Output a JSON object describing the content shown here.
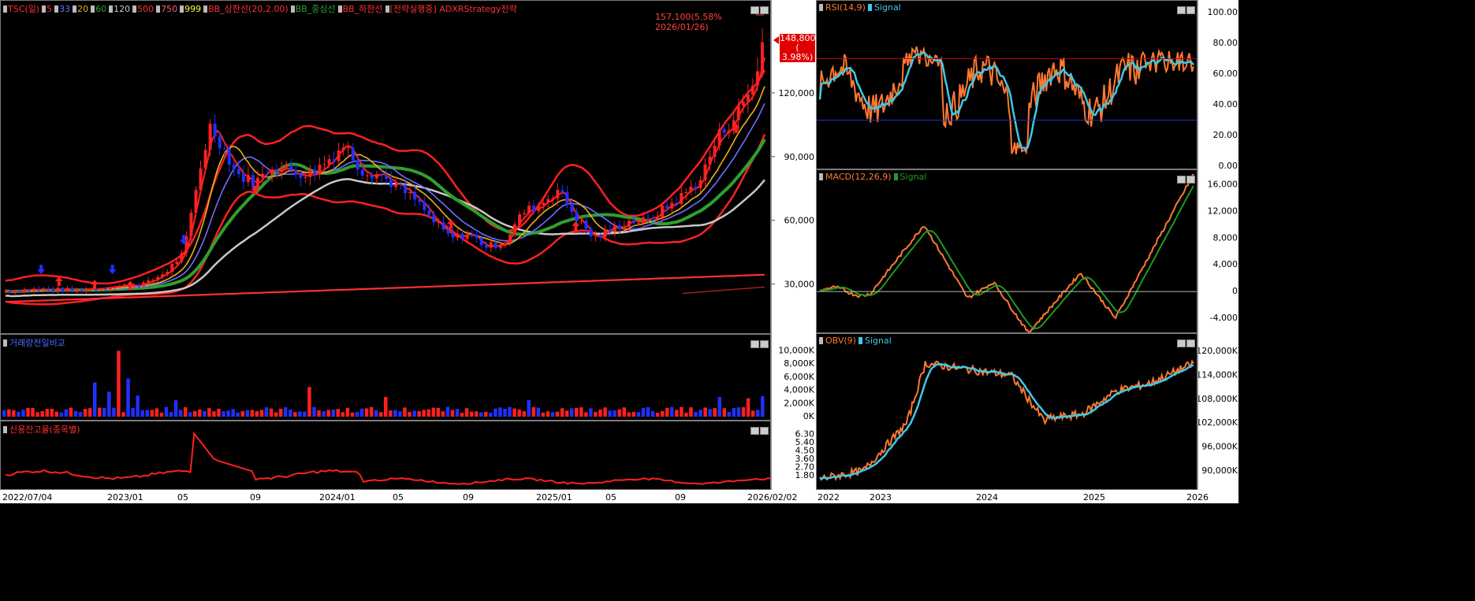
{
  "main_legend": [
    {
      "text": "TSC(일)",
      "color": "#ff3030"
    },
    {
      "text": "5",
      "color": "#ff3030"
    },
    {
      "text": "33",
      "color": "#6f6fff"
    },
    {
      "text": "20",
      "color": "#e8b020"
    },
    {
      "text": "60",
      "color": "#2ea02e"
    },
    {
      "text": "120",
      "color": "#c8c8c8"
    },
    {
      "text": "500",
      "color": "#ff3030"
    },
    {
      "text": "750",
      "color": "#ff6060"
    },
    {
      "text": "999",
      "color": "#ffff40"
    },
    {
      "text": "BB_상한선(20,2.00)",
      "color": "#ff3030"
    },
    {
      "text": "BB_중심선",
      "color": "#2ea02e"
    },
    {
      "text": "BB_하한선",
      "color": "#ff3030"
    },
    {
      "text": "[전략실행중] ADXRStrategy전략",
      "color": "#ff3030"
    }
  ],
  "main_annotations": {
    "high": "157,100(5.58% 2026/01/26)",
    "low": "",
    "current_price": "148,800",
    "current_change": "( 3.98%)"
  },
  "volume_legend": "거래량전일비교",
  "credit_legend": "신용잔고율(종목별)",
  "rsi_legend": {
    "main": "RSI(14,9)",
    "signal": "Signal"
  },
  "macd_legend": {
    "main": "MACD(12,26,9)",
    "signal": "Signal"
  },
  "obv_legend": {
    "main": "OBV(9)",
    "signal": "Signal"
  },
  "colors": {
    "up": "#ff2020",
    "down": "#2030ff",
    "orange": "#ff7a30",
    "cyan": "#40c8e8",
    "green": "#1e9a1e",
    "ref": "#c00000"
  },
  "chart_data": [
    {
      "type": "candlestick",
      "name": "price",
      "x_ticks": [
        "2022/07/04",
        "2023/01",
        "05",
        "09",
        "2024/01",
        "05",
        "09",
        "2025/01",
        "05",
        "09",
        "2026/02/02"
      ],
      "y_ticks": [
        "120,000",
        "90,000",
        "60,000",
        "30,000"
      ],
      "y_tick_values": [
        120000,
        90000,
        60000,
        30000
      ],
      "ylim": [
        8000,
        160000
      ],
      "x_range_months": [
        0,
        43
      ],
      "close_points": [
        [
          0,
          27000
        ],
        [
          2,
          28000
        ],
        [
          4,
          27500
        ],
        [
          6,
          29000
        ],
        [
          8,
          31000
        ],
        [
          9,
          36000
        ],
        [
          10,
          45000
        ],
        [
          11,
          88000
        ],
        [
          11.5,
          105000
        ],
        [
          12,
          98000
        ],
        [
          13,
          82000
        ],
        [
          14,
          78000
        ],
        [
          15,
          86000
        ],
        [
          16,
          84000
        ],
        [
          17,
          82000
        ],
        [
          18,
          88000
        ],
        [
          19,
          96000
        ],
        [
          20,
          84000
        ],
        [
          21,
          82000
        ],
        [
          22,
          76000
        ],
        [
          23,
          70000
        ],
        [
          24,
          60000
        ],
        [
          25,
          52000
        ],
        [
          26,
          54000
        ],
        [
          27,
          48000
        ],
        [
          28,
          50000
        ],
        [
          29,
          64000
        ],
        [
          30,
          68000
        ],
        [
          31,
          75000
        ],
        [
          32,
          62000
        ],
        [
          33,
          52000
        ],
        [
          34,
          56000
        ],
        [
          35,
          60000
        ],
        [
          36,
          60000
        ],
        [
          37,
          66000
        ],
        [
          38,
          72000
        ],
        [
          39,
          80000
        ],
        [
          40,
          100000
        ],
        [
          41,
          110000
        ],
        [
          42,
          125000
        ],
        [
          42.6,
          148800
        ]
      ],
      "moving_averages": [
        {
          "label": "5",
          "color": "#ff2020"
        },
        {
          "label": "20",
          "color": "#e8b020"
        },
        {
          "label": "33",
          "color": "#6f6fff"
        },
        {
          "label": "60",
          "color": "#2ea02e"
        },
        {
          "label": "120",
          "color": "#c8c8c8"
        },
        {
          "label": "500",
          "color": "#ff3030"
        }
      ]
    },
    {
      "type": "bar",
      "name": "volume",
      "y_ticks": [
        "10,000K",
        "8,000K",
        "6,000K",
        "4,000K",
        "2,000K",
        "0K"
      ],
      "ylim": [
        0,
        11000
      ]
    },
    {
      "type": "line",
      "name": "credit_ratio",
      "y_ticks": [
        "6.30",
        "5.40",
        "4.50",
        "3.60",
        "2.70",
        "1.80"
      ],
      "ylim": [
        0.5,
        7.2
      ]
    },
    {
      "type": "line",
      "name": "rsi",
      "y_ticks": [
        "100.00",
        "80.00",
        "60.00",
        "40.00",
        "20.00",
        "0.00"
      ],
      "ylim": [
        0,
        100
      ],
      "reference_lines": [
        70,
        30
      ]
    },
    {
      "type": "line",
      "name": "macd",
      "y_ticks": [
        "16,000",
        "12,000",
        "8,000",
        "4,000",
        "0",
        "-4,000"
      ],
      "ylim": [
        -6000,
        17000
      ],
      "reference_lines": [
        0
      ]
    },
    {
      "type": "line",
      "name": "obv",
      "y_ticks": [
        "120,000K",
        "114,000K",
        "108,000K",
        "102,000K",
        "96,000K",
        "90,000K"
      ],
      "ylim": [
        86000,
        122000
      ]
    },
    {
      "type": "axis",
      "name": "indicator_x",
      "x_ticks": [
        "2022",
        "2023",
        "2024",
        "2025",
        "2026"
      ]
    }
  ]
}
